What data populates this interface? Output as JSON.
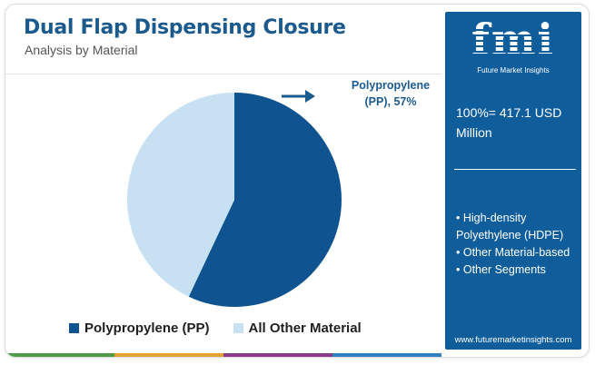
{
  "title": "Dual Flap Dispensing Closure",
  "subtitle": "Analysis by Material",
  "callout": {
    "line1": "Polypropylene",
    "line2": "(PP), 57%"
  },
  "legend": [
    {
      "label": "Polypropylene (PP)",
      "color": "#0f5490"
    },
    {
      "label": "All Other Material",
      "color": "#c7e1f3"
    }
  ],
  "side_panel": {
    "logo_text": "fmi",
    "logo_tagline": "Future Market Insights",
    "total_text": "100%= 417.1 USD Million",
    "segments": [
      "• High-density Polyethylene (HDPE)",
      "• Other Material-based",
      "• Other Segments"
    ],
    "website": "www.futuremarketinsights.com",
    "background_color": "#0f5d9b"
  },
  "bottom_bar_colors": [
    "#4f9a4a",
    "#e3a132",
    "#8a3a8a",
    "#2f7fc1"
  ],
  "chart_data": {
    "type": "pie",
    "title": "Dual Flap Dispensing Closure",
    "subtitle": "Analysis by Material",
    "slices": [
      {
        "label": "Polypropylene (PP)",
        "value": 57,
        "color": "#0f5490"
      },
      {
        "label": "All Other Material",
        "value": 43,
        "color": "#c7e1f3"
      }
    ],
    "annotation": "Polypropylene (PP), 57%",
    "legend_position": "bottom"
  }
}
